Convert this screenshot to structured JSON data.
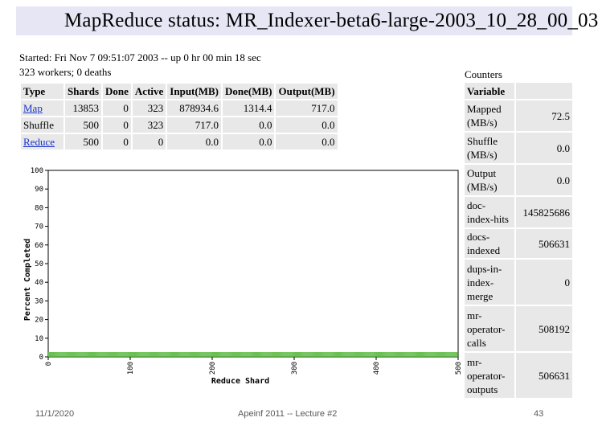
{
  "page": {
    "title": "MapReduce status: MR_Indexer-beta6-large-2003_10_28_00_03",
    "started_line": "Started: Fri Nov 7 09:51:07 2003 -- up 0 hr 00 min 18 sec",
    "workers_line": "323 workers; 0 deaths"
  },
  "jobs_table": {
    "headers": [
      "Type",
      "Shards",
      "Done",
      "Active",
      "Input(MB)",
      "Done(MB)",
      "Output(MB)"
    ],
    "rows": [
      {
        "type": "Map",
        "shards": "13853",
        "done": "0",
        "active": "323",
        "input": "878934.6",
        "done_mb": "1314.4",
        "output": "717.0",
        "is_link": true
      },
      {
        "type": "Shuffle",
        "shards": "500",
        "done": "0",
        "active": "323",
        "input": "717.0",
        "done_mb": "0.0",
        "output": "0.0",
        "is_link": false
      },
      {
        "type": "Reduce",
        "shards": "500",
        "done": "0",
        "active": "0",
        "input": "0.0",
        "done_mb": "0.0",
        "output": "0.0",
        "is_link": true
      }
    ]
  },
  "counters": {
    "title": "Counters",
    "header": "Variable",
    "rows": [
      {
        "name": "Mapped (MB/s)",
        "value": "72.5"
      },
      {
        "name": "Shuffle (MB/s)",
        "value": "0.0"
      },
      {
        "name": "Output (MB/s)",
        "value": "0.0"
      },
      {
        "name": "doc-index-hits",
        "value": "145825686"
      },
      {
        "name": "docs-indexed",
        "value": "506631"
      },
      {
        "name": "dups-in-index-merge",
        "value": "0"
      },
      {
        "name": "mr-operator-calls",
        "value": "508192"
      },
      {
        "name": "mr-operator-outputs",
        "value": "506631"
      }
    ]
  },
  "chart_data": {
    "type": "bar",
    "xlabel": "Reduce Shard",
    "ylabel": "Percent Completed",
    "xlim": [
      0,
      500
    ],
    "ylim": [
      0,
      100
    ],
    "xticks": [
      "0",
      "100",
      "200",
      "300",
      "400",
      "500"
    ],
    "yticks": [
      "0",
      "10",
      "20",
      "30",
      "40",
      "50",
      "60",
      "70",
      "80",
      "90",
      "100"
    ],
    "shard_count": 500,
    "percent_completed_all_shards": 0,
    "bar_color": "#55b83a"
  },
  "footer": {
    "date": "11/1/2020",
    "course": "Apeinf 2011 -- Lecture #2",
    "page_number": "43"
  }
}
